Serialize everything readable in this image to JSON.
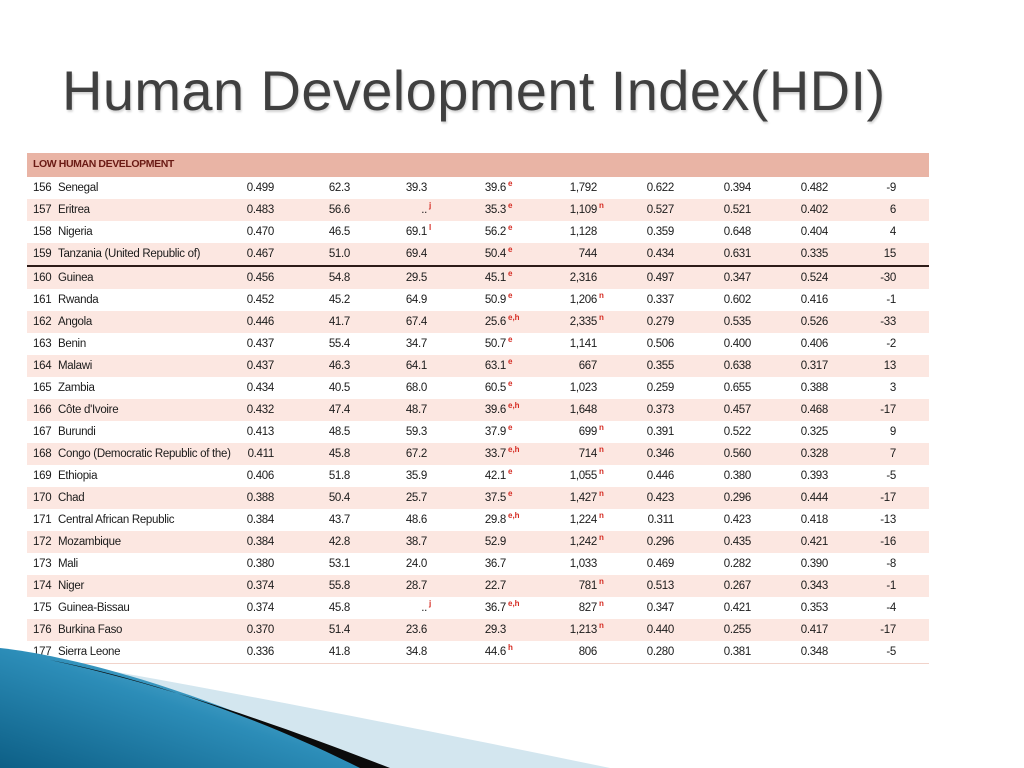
{
  "slide": {
    "title": "Human Development Index(HDI)"
  },
  "table": {
    "section_label": "LOW HUMAN DEVELOPMENT",
    "groups": [
      {
        "rows": [
          {
            "rank": "156",
            "country": "Senegal",
            "cells": [
              {
                "v": "0.499"
              },
              {
                "v": "62.3"
              },
              {
                "v": "39.3"
              },
              {
                "v": "39.6",
                "fn": "e"
              },
              {
                "v": "1,792"
              },
              {
                "v": "0.622"
              },
              {
                "v": "0.394"
              },
              {
                "v": "0.482"
              },
              {
                "v": "-9"
              }
            ]
          },
          {
            "rank": "157",
            "country": "Eritrea",
            "cells": [
              {
                "v": "0.483"
              },
              {
                "v": "56.6"
              },
              {
                "v": "..",
                "fn": "j"
              },
              {
                "v": "35.3",
                "fn": "e"
              },
              {
                "v": "1,109",
                "fn": "n"
              },
              {
                "v": "0.527"
              },
              {
                "v": "0.521"
              },
              {
                "v": "0.402"
              },
              {
                "v": "6"
              }
            ]
          },
          {
            "rank": "158",
            "country": "Nigeria",
            "cells": [
              {
                "v": "0.470"
              },
              {
                "v": "46.5"
              },
              {
                "v": "69.1",
                "fn": "l"
              },
              {
                "v": "56.2",
                "fn": "e"
              },
              {
                "v": "1,128"
              },
              {
                "v": "0.359"
              },
              {
                "v": "0.648"
              },
              {
                "v": "0.404"
              },
              {
                "v": "4"
              }
            ]
          },
          {
            "rank": "159",
            "country": "Tanzania (United Republic of)",
            "cells": [
              {
                "v": "0.467"
              },
              {
                "v": "51.0"
              },
              {
                "v": "69.4"
              },
              {
                "v": "50.4",
                "fn": "e"
              },
              {
                "v": "744"
              },
              {
                "v": "0.434"
              },
              {
                "v": "0.631"
              },
              {
                "v": "0.335"
              },
              {
                "v": "15"
              }
            ]
          }
        ]
      },
      {
        "rows": [
          {
            "rank": "160",
            "country": "Guinea",
            "cells": [
              {
                "v": "0.456"
              },
              {
                "v": "54.8"
              },
              {
                "v": "29.5"
              },
              {
                "v": "45.1",
                "fn": "e"
              },
              {
                "v": "2,316"
              },
              {
                "v": "0.497"
              },
              {
                "v": "0.347"
              },
              {
                "v": "0.524"
              },
              {
                "v": "-30"
              }
            ]
          },
          {
            "rank": "161",
            "country": "Rwanda",
            "cells": [
              {
                "v": "0.452"
              },
              {
                "v": "45.2"
              },
              {
                "v": "64.9"
              },
              {
                "v": "50.9",
                "fn": "e"
              },
              {
                "v": "1,206",
                "fn": "n"
              },
              {
                "v": "0.337"
              },
              {
                "v": "0.602"
              },
              {
                "v": "0.416"
              },
              {
                "v": "-1"
              }
            ]
          },
          {
            "rank": "162",
            "country": "Angola",
            "cells": [
              {
                "v": "0.446"
              },
              {
                "v": "41.7"
              },
              {
                "v": "67.4"
              },
              {
                "v": "25.6",
                "fn": "e,h"
              },
              {
                "v": "2,335",
                "fn": "n"
              },
              {
                "v": "0.279"
              },
              {
                "v": "0.535"
              },
              {
                "v": "0.526"
              },
              {
                "v": "-33"
              }
            ]
          },
          {
            "rank": "163",
            "country": "Benin",
            "cells": [
              {
                "v": "0.437"
              },
              {
                "v": "55.4"
              },
              {
                "v": "34.7"
              },
              {
                "v": "50.7",
                "fn": "e"
              },
              {
                "v": "1,141"
              },
              {
                "v": "0.506"
              },
              {
                "v": "0.400"
              },
              {
                "v": "0.406"
              },
              {
                "v": "-2"
              }
            ]
          },
          {
            "rank": "164",
            "country": "Malawi",
            "cells": [
              {
                "v": "0.437"
              },
              {
                "v": "46.3"
              },
              {
                "v": "64.1"
              },
              {
                "v": "63.1",
                "fn": "e"
              },
              {
                "v": "667"
              },
              {
                "v": "0.355"
              },
              {
                "v": "0.638"
              },
              {
                "v": "0.317"
              },
              {
                "v": "13"
              }
            ]
          },
          {
            "rank": "165",
            "country": "Zambia",
            "cells": [
              {
                "v": "0.434"
              },
              {
                "v": "40.5"
              },
              {
                "v": "68.0"
              },
              {
                "v": "60.5",
                "fn": "e"
              },
              {
                "v": "1,023"
              },
              {
                "v": "0.259"
              },
              {
                "v": "0.655"
              },
              {
                "v": "0.388"
              },
              {
                "v": "3"
              }
            ]
          },
          {
            "rank": "166",
            "country": "Côte d'Ivoire",
            "cells": [
              {
                "v": "0.432"
              },
              {
                "v": "47.4"
              },
              {
                "v": "48.7"
              },
              {
                "v": "39.6",
                "fn": "e,h"
              },
              {
                "v": "1,648"
              },
              {
                "v": "0.373"
              },
              {
                "v": "0.457"
              },
              {
                "v": "0.468"
              },
              {
                "v": "-17"
              }
            ]
          },
          {
            "rank": "167",
            "country": "Burundi",
            "cells": [
              {
                "v": "0.413"
              },
              {
                "v": "48.5"
              },
              {
                "v": "59.3"
              },
              {
                "v": "37.9",
                "fn": "e"
              },
              {
                "v": "699",
                "fn": "n"
              },
              {
                "v": "0.391"
              },
              {
                "v": "0.522"
              },
              {
                "v": "0.325"
              },
              {
                "v": "9"
              }
            ]
          },
          {
            "rank": "168",
            "country": "Congo (Democratic Republic of the)",
            "cells": [
              {
                "v": "0.411"
              },
              {
                "v": "45.8"
              },
              {
                "v": "67.2"
              },
              {
                "v": "33.7",
                "fn": "e,h"
              },
              {
                "v": "714",
                "fn": "n"
              },
              {
                "v": "0.346"
              },
              {
                "v": "0.560"
              },
              {
                "v": "0.328"
              },
              {
                "v": "7"
              }
            ]
          },
          {
            "rank": "169",
            "country": "Ethiopia",
            "cells": [
              {
                "v": "0.406"
              },
              {
                "v": "51.8"
              },
              {
                "v": "35.9"
              },
              {
                "v": "42.1",
                "fn": "e"
              },
              {
                "v": "1,055",
                "fn": "n"
              },
              {
                "v": "0.446"
              },
              {
                "v": "0.380"
              },
              {
                "v": "0.393"
              },
              {
                "v": "-5"
              }
            ]
          },
          {
            "rank": "170",
            "country": "Chad",
            "cells": [
              {
                "v": "0.388"
              },
              {
                "v": "50.4"
              },
              {
                "v": "25.7"
              },
              {
                "v": "37.5",
                "fn": "e"
              },
              {
                "v": "1,427",
                "fn": "n"
              },
              {
                "v": "0.423"
              },
              {
                "v": "0.296"
              },
              {
                "v": "0.444"
              },
              {
                "v": "-17"
              }
            ]
          },
          {
            "rank": "171",
            "country": "Central African Republic",
            "cells": [
              {
                "v": "0.384"
              },
              {
                "v": "43.7"
              },
              {
                "v": "48.6"
              },
              {
                "v": "29.8",
                "fn": "e,h"
              },
              {
                "v": "1,224",
                "fn": "n"
              },
              {
                "v": "0.311"
              },
              {
                "v": "0.423"
              },
              {
                "v": "0.418"
              },
              {
                "v": "-13"
              }
            ]
          },
          {
            "rank": "172",
            "country": "Mozambique",
            "cells": [
              {
                "v": "0.384"
              },
              {
                "v": "42.8"
              },
              {
                "v": "38.7"
              },
              {
                "v": "52.9"
              },
              {
                "v": "1,242",
                "fn": "n"
              },
              {
                "v": "0.296"
              },
              {
                "v": "0.435"
              },
              {
                "v": "0.421"
              },
              {
                "v": "-16"
              }
            ]
          },
          {
            "rank": "173",
            "country": "Mali",
            "cells": [
              {
                "v": "0.380"
              },
              {
                "v": "53.1"
              },
              {
                "v": "24.0"
              },
              {
                "v": "36.7"
              },
              {
                "v": "1,033"
              },
              {
                "v": "0.469"
              },
              {
                "v": "0.282"
              },
              {
                "v": "0.390"
              },
              {
                "v": "-8"
              }
            ]
          },
          {
            "rank": "174",
            "country": "Niger",
            "cells": [
              {
                "v": "0.374"
              },
              {
                "v": "55.8"
              },
              {
                "v": "28.7"
              },
              {
                "v": "22.7"
              },
              {
                "v": "781",
                "fn": "n"
              },
              {
                "v": "0.513"
              },
              {
                "v": "0.267"
              },
              {
                "v": "0.343"
              },
              {
                "v": "-1"
              }
            ]
          },
          {
            "rank": "175",
            "country": "Guinea-Bissau",
            "cells": [
              {
                "v": "0.374"
              },
              {
                "v": "45.8"
              },
              {
                "v": "..",
                "fn": "j"
              },
              {
                "v": "36.7",
                "fn": "e,h"
              },
              {
                "v": "827",
                "fn": "n"
              },
              {
                "v": "0.347"
              },
              {
                "v": "0.421"
              },
              {
                "v": "0.353"
              },
              {
                "v": "-4"
              }
            ]
          },
          {
            "rank": "176",
            "country": "Burkina Faso",
            "cells": [
              {
                "v": "0.370"
              },
              {
                "v": "51.4"
              },
              {
                "v": "23.6"
              },
              {
                "v": "29.3"
              },
              {
                "v": "1,213",
                "fn": "n"
              },
              {
                "v": "0.440"
              },
              {
                "v": "0.255"
              },
              {
                "v": "0.417"
              },
              {
                "v": "-17"
              }
            ]
          },
          {
            "rank": "177",
            "country": "Sierra Leone",
            "cells": [
              {
                "v": "0.336"
              },
              {
                "v": "41.8"
              },
              {
                "v": "34.8"
              },
              {
                "v": "44.6",
                "fn": "h"
              },
              {
                "v": "806"
              },
              {
                "v": "0.280"
              },
              {
                "v": "0.381"
              },
              {
                "v": "0.348"
              },
              {
                "v": "-5"
              }
            ]
          }
        ]
      }
    ]
  },
  "colors": {
    "title": "#404040",
    "header_bg": "#e9b4a5",
    "row_shade_bg": "#fce7e1",
    "section_label": "#6a1a14",
    "footnote": "#d52b22",
    "separator": "#2d1c18",
    "swoosh_dark_blue": "#0d5f86",
    "swoosh_mid_blue": "#2c8db8",
    "swoosh_light_blue": "#8fd3ec",
    "swoosh_pale_blue": "#d3e6ef",
    "swoosh_black": "#0b0b0b"
  }
}
